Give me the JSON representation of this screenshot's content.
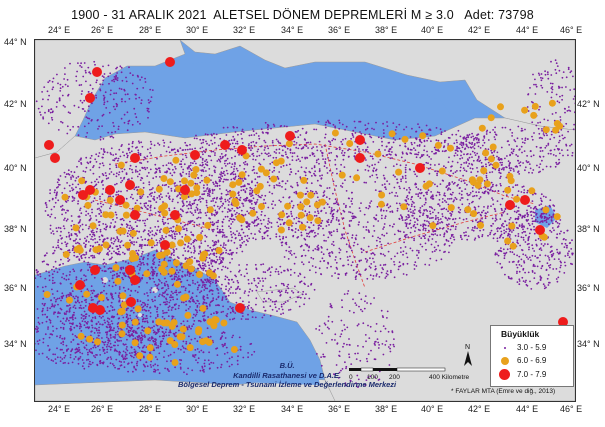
{
  "title": "1900 - 31 ARALIK 2021  ALETSEL DÖNEM DEPREMLERİ M ≥ 3.0   Adet: 73798",
  "axes": {
    "top_ticks": [
      "24° E",
      "26° E",
      "28° E",
      "30° E",
      "32° E",
      "34° E",
      "36° E",
      "38° E",
      "40° E",
      "42° E",
      "44° E",
      "46° E"
    ],
    "bottom_ticks": [
      "24° E",
      "26° E",
      "28° E",
      "30° E",
      "32° E",
      "34° E",
      "36° E",
      "38° E",
      "40° E",
      "42° E",
      "44° E",
      "46° E"
    ],
    "left_ticks": [
      "44° N",
      "42° N",
      "40° N",
      "38° N",
      "36° N",
      "34° N"
    ],
    "right_ticks": [
      "42° N",
      "40° N",
      "38° N",
      "36° N",
      "34° N"
    ]
  },
  "legend": {
    "title": "Büyüklük",
    "items": [
      {
        "label": "3.0 - 5.9",
        "color": "#7a1fa0"
      },
      {
        "label": "6.0 - 6.9",
        "color": "#e8a11c"
      },
      {
        "label": "7.0 - 7.9",
        "color": "#ee1c1c"
      }
    ]
  },
  "credit": {
    "line1": "B.Ü.",
    "line2": "Kandilli Rasathanesi ve D.A.E.",
    "line3": "Bölgesel Deprem - Tsunami İzleme ve Değerlendirme Merkezi"
  },
  "scale": {
    "labels": [
      "0",
      "100",
      "200",
      "400 Kilometre"
    ]
  },
  "citation": "* FAYLAR   MTA (Emre ve diğ., 2013)",
  "colors": {
    "sea": "#6fa2e6",
    "land": "#dcdcdc",
    "minor": "#7a1fa0",
    "moderate": "#e8a11c",
    "major": "#ee1c1c",
    "fault": "#e23b3b"
  }
}
